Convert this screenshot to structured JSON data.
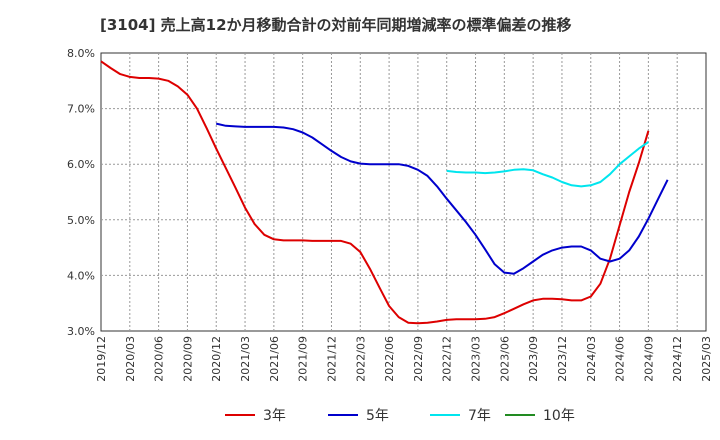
{
  "chart_data": {
    "type": "line",
    "title": "[3104]  売上高12か月移動合計の対前年同期増減率の標準偏差の推移",
    "xlabel": "",
    "ylabel": "",
    "ylim": [
      3.0,
      8.0
    ],
    "y_ticks": [
      "3.0%",
      "4.0%",
      "5.0%",
      "6.0%",
      "7.0%",
      "8.0%"
    ],
    "x_ticks": [
      "2019/12",
      "2020/03",
      "2020/06",
      "2020/09",
      "2020/12",
      "2021/03",
      "2021/06",
      "2021/09",
      "2021/12",
      "2022/03",
      "2022/06",
      "2022/09",
      "2022/12",
      "2023/03",
      "2023/06",
      "2023/09",
      "2023/12",
      "2024/03",
      "2024/06",
      "2024/09",
      "2024/12",
      "2025/03"
    ],
    "grid": true,
    "legend_position": "bottom",
    "series": [
      {
        "name": "3年",
        "color": "#dd0000",
        "start_index": 0,
        "values": [
          7.85,
          7.73,
          7.62,
          7.57,
          7.55,
          7.55,
          7.54,
          7.5,
          7.4,
          7.25,
          7.0,
          6.65,
          6.28,
          5.93,
          5.58,
          5.22,
          4.92,
          4.73,
          4.65,
          4.63,
          4.63,
          4.63,
          4.62,
          4.62,
          4.62,
          4.62,
          4.57,
          4.42,
          4.12,
          3.78,
          3.45,
          3.25,
          3.15,
          3.14,
          3.15,
          3.17,
          3.2,
          3.21,
          3.21,
          3.21,
          3.22,
          3.25,
          3.32,
          3.4,
          3.48,
          3.55,
          3.58,
          3.58,
          3.57,
          3.55,
          3.55,
          3.62,
          3.85,
          4.3,
          4.9,
          5.5,
          6.02,
          6.6
        ]
      },
      {
        "name": "5年",
        "color": "#0000cc",
        "start_index": 12,
        "values": [
          6.73,
          6.69,
          6.68,
          6.67,
          6.67,
          6.67,
          6.67,
          6.66,
          6.63,
          6.57,
          6.48,
          6.36,
          6.24,
          6.13,
          6.05,
          6.01,
          6.0,
          6.0,
          6.0,
          6.0,
          5.97,
          5.9,
          5.79,
          5.6,
          5.38,
          5.17,
          4.96,
          4.73,
          4.47,
          4.2,
          4.05,
          4.03,
          4.13,
          4.25,
          4.37,
          4.45,
          4.5,
          4.52,
          4.52,
          4.45,
          4.3,
          4.25,
          4.3,
          4.45,
          4.7,
          5.02,
          5.37,
          5.72
        ]
      },
      {
        "name": "7年",
        "color": "#00e5ee",
        "start_index": 36,
        "values": [
          5.88,
          5.86,
          5.85,
          5.85,
          5.84,
          5.85,
          5.87,
          5.9,
          5.91,
          5.89,
          5.82,
          5.76,
          5.68,
          5.62,
          5.6,
          5.62,
          5.68,
          5.82,
          6.0,
          6.14,
          6.28,
          6.4
        ]
      },
      {
        "name": "10年",
        "color": "#228b22",
        "start_index": 0,
        "values": []
      }
    ]
  }
}
